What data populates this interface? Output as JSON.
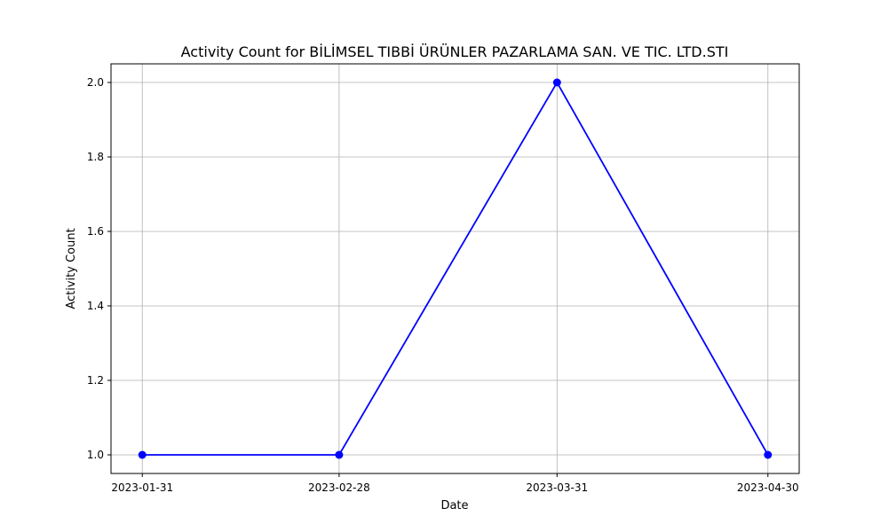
{
  "chart_data": {
    "type": "line",
    "title": "Activity Count for BİLİMSEL TIBBİ ÜRÜNLER PAZARLAMA SAN. VE TIC. LTD.STI",
    "xlabel": "Date",
    "ylabel": "Activity Count",
    "x": [
      "2023-01-31",
      "2023-02-28",
      "2023-03-31",
      "2023-04-30"
    ],
    "xticks": [
      "2023-01-31",
      "2023-02-28",
      "2023-03-31",
      "2023-04-30"
    ],
    "series": [
      {
        "values": [
          1,
          1,
          2,
          1
        ],
        "color": "#0000ff",
        "marker": "circle"
      }
    ],
    "yticks": [
      "1.0",
      "1.2",
      "1.4",
      "1.6",
      "1.8",
      "2.0"
    ],
    "ylim": [
      0.95,
      2.05
    ],
    "grid": true,
    "legend": "none"
  }
}
